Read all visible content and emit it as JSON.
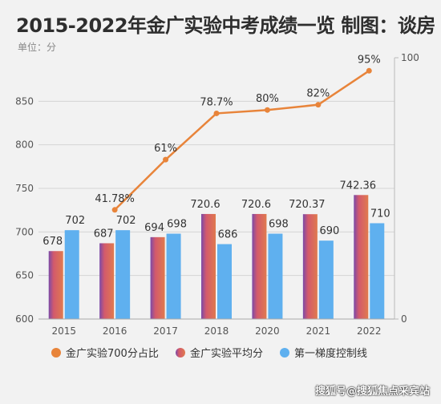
{
  "header": {
    "title": "2015-2022年金广实验中考成绩一览 制图：谈房",
    "unit": "单位：分"
  },
  "colors": {
    "line": "#e8843a",
    "avg_bar": "#d35a6c",
    "avg_bar_edge": "#7b4aa8",
    "control_bar": "#5fb0ef",
    "grid": "#d4d4d4",
    "axis_text": "#555555"
  },
  "watermark": "搜狐号@搜狐焦点采宾站",
  "chart_data": {
    "type": "bar",
    "title": "2015-2022年金广实验中考成绩一览 制图：谈房",
    "categories": [
      "2015",
      "2016",
      "2017",
      "2018",
      "2020",
      "2021",
      "2022"
    ],
    "ylim": [
      600,
      900
    ],
    "y_ticks": [
      600,
      650,
      700,
      750,
      800,
      850
    ],
    "y2lim": [
      0,
      100
    ],
    "y2_ticks": [
      0,
      100
    ],
    "grid": true,
    "legend_position": "bottom",
    "series": [
      {
        "name": "金广实验700分占比",
        "type": "line",
        "axis": "right",
        "x": [
          "2016",
          "2017",
          "2018",
          "2020",
          "2021",
          "2022"
        ],
        "values": [
          41.78,
          61,
          78.7,
          80,
          82,
          95
        ],
        "labels": [
          "41.78%",
          "61%",
          "78.7%",
          "80%",
          "82%",
          "95%"
        ]
      },
      {
        "name": "金广实验平均分",
        "type": "bar",
        "axis": "left",
        "values": [
          678,
          687,
          694,
          720.6,
          720.6,
          720.37,
          742.36
        ],
        "labels": [
          "678",
          "687",
          "694",
          "720.6",
          "720.6",
          "720.37",
          "742.36"
        ]
      },
      {
        "name": "第一梯度控制线",
        "type": "bar",
        "axis": "left",
        "values": [
          702,
          702,
          698,
          686,
          698,
          690,
          710
        ],
        "labels": [
          "702",
          "702",
          "698",
          "686",
          "698",
          "690",
          "710"
        ]
      }
    ]
  }
}
